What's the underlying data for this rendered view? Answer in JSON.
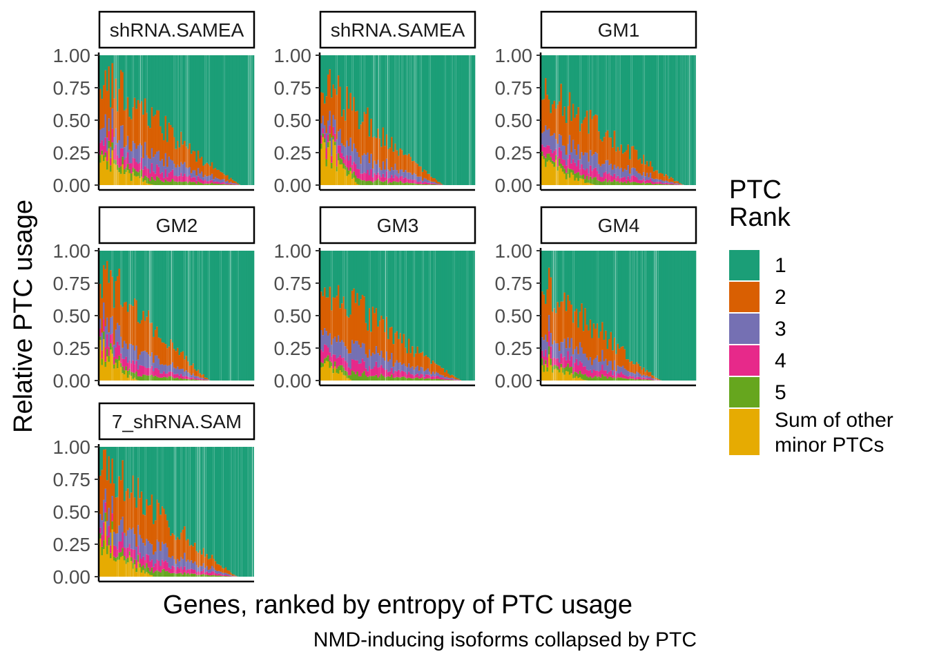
{
  "chart_data": {
    "type": "bar",
    "stacked": true,
    "faceted": true,
    "xlabel": "Genes, ranked by entropy of PTC usage",
    "ylabel": "Relative PTC usage",
    "caption": "NMD-inducing isoforms collapsed by PTC",
    "ylim": [
      0,
      1
    ],
    "yticks": [
      "0.00",
      "0.25",
      "0.50",
      "0.75",
      "1.00"
    ],
    "grid": false,
    "legend": {
      "title": "PTC\nRank",
      "position": "right",
      "entries": [
        {
          "label": "1",
          "color": "#1B9E77"
        },
        {
          "label": "2",
          "color": "#D95F02"
        },
        {
          "label": "3",
          "color": "#7570B3"
        },
        {
          "label": "4",
          "color": "#E7298A"
        },
        {
          "label": "5",
          "color": "#66A61E"
        },
        {
          "label": "Sum of other\nminor PTCs",
          "color": "#E6AB02"
        }
      ]
    },
    "n_bars_per_panel": 90,
    "panels": [
      {
        "strip": "shRNA.SAMEA",
        "profile": {
          "start_nonrank1": 0.85,
          "zero_at": 0.92,
          "minor_start": 0.3,
          "minor_decay": 0.35,
          "seed": 11
        }
      },
      {
        "strip": "shRNA.SAMEA",
        "profile": {
          "start_nonrank1": 0.82,
          "zero_at": 0.8,
          "minor_start": 0.45,
          "minor_decay": 0.25,
          "seed": 23
        }
      },
      {
        "strip": "GM1",
        "profile": {
          "start_nonrank1": 0.75,
          "zero_at": 0.93,
          "minor_start": 0.3,
          "minor_decay": 0.35,
          "seed": 37
        }
      },
      {
        "strip": "GM2",
        "profile": {
          "start_nonrank1": 0.85,
          "zero_at": 0.72,
          "minor_start": 0.28,
          "minor_decay": 0.25,
          "seed": 41
        }
      },
      {
        "strip": "GM3",
        "profile": {
          "start_nonrank1": 0.78,
          "zero_at": 0.92,
          "minor_start": 0.25,
          "minor_decay": 0.2,
          "seed": 53
        }
      },
      {
        "strip": "GM4",
        "profile": {
          "start_nonrank1": 0.78,
          "zero_at": 0.78,
          "minor_start": 0.2,
          "minor_decay": 0.3,
          "seed": 67
        }
      },
      {
        "strip": "7_shRNA.SAM",
        "profile": {
          "start_nonrank1": 0.88,
          "zero_at": 0.9,
          "minor_start": 0.4,
          "minor_decay": 0.35,
          "seed": 79
        }
      }
    ]
  }
}
